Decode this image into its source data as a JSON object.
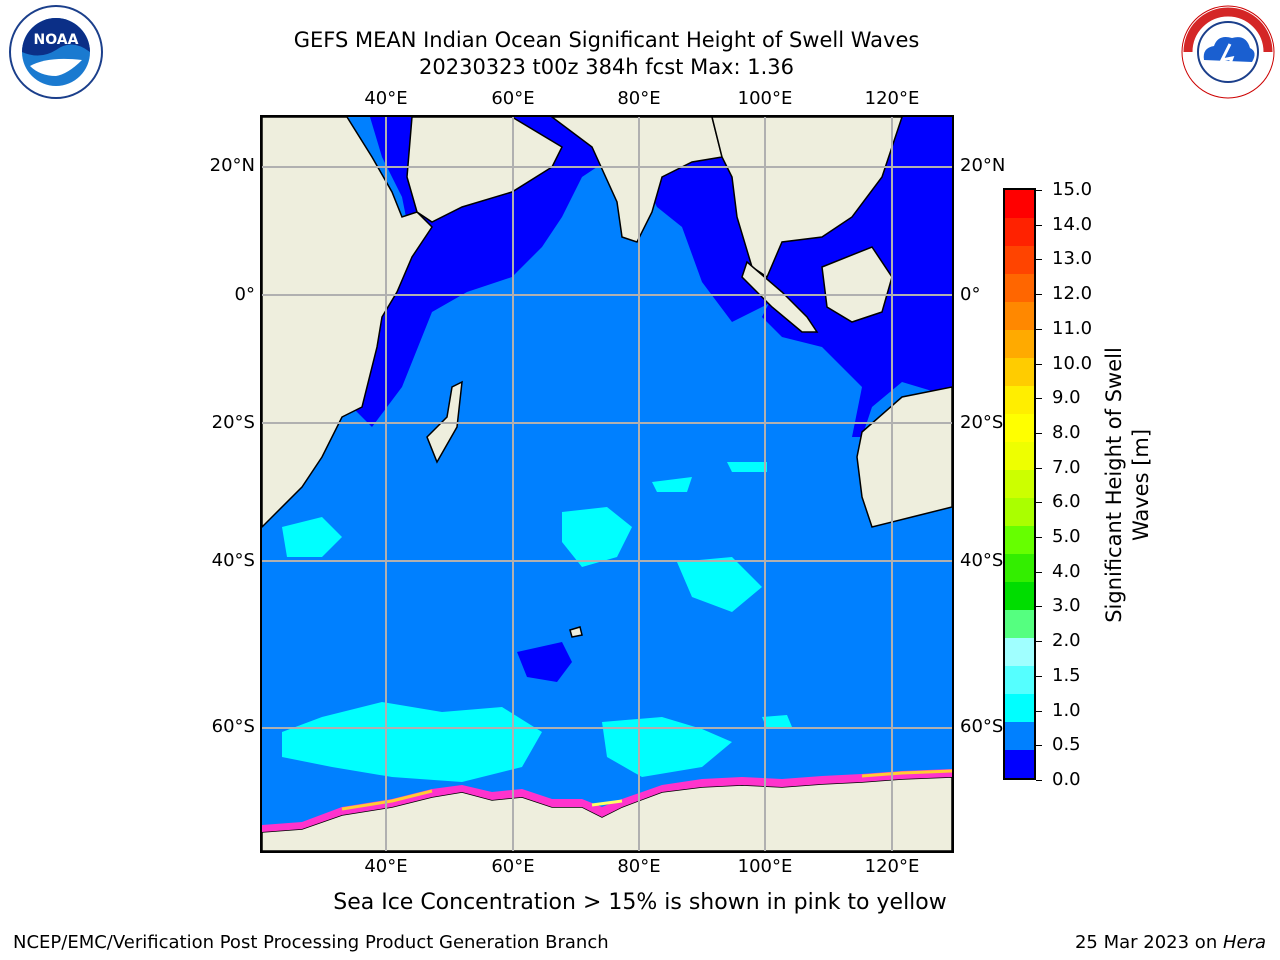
{
  "header": {
    "title_line1": "GEFS MEAN Indian Ocean Significant Height of Swell Waves",
    "title_line2": "20230323 t00z 384h fcst   Max: 1.36"
  },
  "logos": {
    "left": {
      "name": "noaa-logo",
      "text": "NOAA"
    },
    "right": {
      "name": "nws-logo",
      "text": "NATIONAL WEATHER SERVICE"
    }
  },
  "map": {
    "lon_ticks": [
      "40°E",
      "60°E",
      "80°E",
      "100°E",
      "120°E"
    ],
    "lat_ticks": [
      "20°N",
      "0°",
      "20°S",
      "40°S",
      "60°S"
    ],
    "colors": {
      "land": "#eeeedd",
      "ocean_swell_0_5_1_0": "#0080ff",
      "ocean_swell_0_0_0_5": "#0000ff",
      "ocean_swell_1_0_1_5": "#00ffff",
      "sea_ice": [
        "#ff33cc",
        "#ff66cc",
        "#ffcc33",
        "#ffff66"
      ],
      "gridline": "#b0b0b0"
    }
  },
  "colorbar": {
    "label_line1": "Significant Height of Swell",
    "label_line2": "Waves [m]",
    "ticks": [
      "15.0",
      "14.0",
      "13.0",
      "12.0",
      "11.0",
      "10.0",
      "9.0",
      "8.0",
      "7.0",
      "6.0",
      "5.0",
      "4.0",
      "3.0",
      "2.0",
      "1.5",
      "1.0",
      "0.5",
      "0.0"
    ],
    "colors_bottom_to_top": [
      "#0000ff",
      "#0080ff",
      "#00ffff",
      "#55ffff",
      "#a0ffff",
      "#55ff80",
      "#00dd00",
      "#33ee00",
      "#66ff00",
      "#aaff00",
      "#ccff00",
      "#eeff00",
      "#ffff00",
      "#ffee00",
      "#ffcc00",
      "#ffaa00",
      "#ff8800",
      "#ff6600",
      "#ff4400",
      "#ff2200",
      "#ff0000"
    ]
  },
  "caption": "Sea Ice Concentration > 15% is shown in pink to yellow",
  "footer": {
    "left": "NCEP/EMC/Verification Post Processing Product Generation Branch",
    "right_date": "25 Mar 2023 on ",
    "right_host": "Hera"
  }
}
